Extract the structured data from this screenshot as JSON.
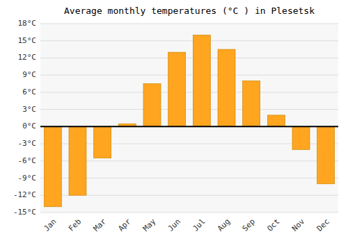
{
  "chart_data": {
    "type": "bar",
    "title": "Average monthly temperatures (°C ) in Plesetsk",
    "categories": [
      "Jan",
      "Feb",
      "Mar",
      "Apr",
      "May",
      "Jun",
      "Jul",
      "Aug",
      "Sep",
      "Oct",
      "Nov",
      "Dec"
    ],
    "values": [
      -14,
      -12,
      -5.5,
      0.5,
      7.5,
      13,
      16,
      13.5,
      8,
      2,
      -4,
      -10
    ],
    "color": "#FFA520",
    "ylim": [
      -15,
      18
    ],
    "yticks": [
      {
        "value": -15,
        "label": "-15°C"
      },
      {
        "value": -12,
        "label": "-12°C"
      },
      {
        "value": -9,
        "label": "-9°C"
      },
      {
        "value": -6,
        "label": "-6°C"
      },
      {
        "value": -3,
        "label": "-3°C"
      },
      {
        "value": 0,
        "label": "0°C"
      },
      {
        "value": 3,
        "label": "3°C"
      },
      {
        "value": 6,
        "label": "6°C"
      },
      {
        "value": 9,
        "label": "9°C"
      },
      {
        "value": 12,
        "label": "12°C"
      },
      {
        "value": 15,
        "label": "15°C"
      },
      {
        "value": 18,
        "label": "18°C"
      }
    ],
    "grid": true
  }
}
